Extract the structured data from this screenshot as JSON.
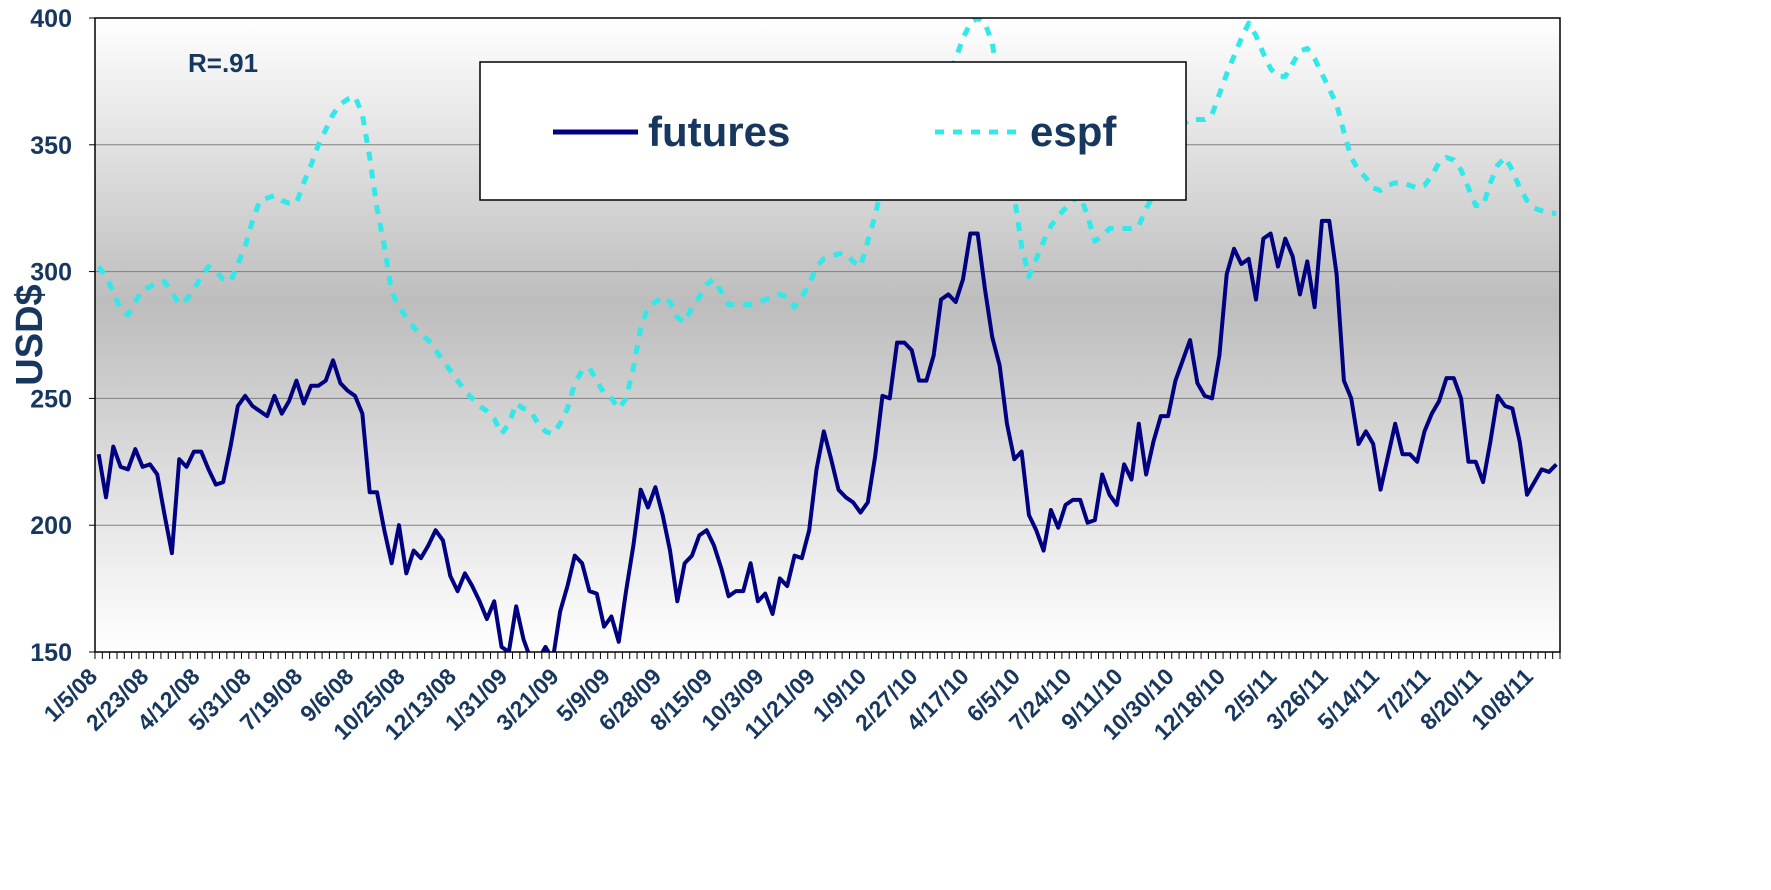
{
  "chart_data": {
    "type": "line",
    "annotations": [
      "R=.91"
    ],
    "y_label": "USD$",
    "categories": [
      "1/5/08",
      null,
      null,
      null,
      null,
      null,
      null,
      "2/23/08",
      null,
      null,
      null,
      null,
      null,
      null,
      "4/12/08",
      null,
      null,
      null,
      null,
      null,
      null,
      "5/31/08",
      null,
      null,
      null,
      null,
      null,
      null,
      "7/19/08",
      null,
      null,
      null,
      null,
      null,
      null,
      "9/6/08",
      null,
      null,
      null,
      null,
      null,
      null,
      "10/25/08",
      null,
      null,
      null,
      null,
      null,
      null,
      "12/13/08",
      null,
      null,
      null,
      null,
      null,
      null,
      "1/31/09",
      null,
      null,
      null,
      null,
      null,
      null,
      "3/21/09",
      null,
      null,
      null,
      null,
      null,
      null,
      "5/9/09",
      null,
      null,
      null,
      null,
      null,
      null,
      "6/28/09",
      null,
      null,
      null,
      null,
      null,
      null,
      "8/15/09",
      null,
      null,
      null,
      null,
      null,
      null,
      "10/3/09",
      null,
      null,
      null,
      null,
      null,
      null,
      "11/21/09",
      null,
      null,
      null,
      null,
      null,
      null,
      "1/9/10",
      null,
      null,
      null,
      null,
      null,
      null,
      "2/27/10",
      null,
      null,
      null,
      null,
      null,
      null,
      "4/17/10",
      null,
      null,
      null,
      null,
      null,
      null,
      "6/5/10",
      null,
      null,
      null,
      null,
      null,
      null,
      "7/24/10",
      null,
      null,
      null,
      null,
      null,
      null,
      "9/11/10",
      null,
      null,
      null,
      null,
      null,
      null,
      "10/30/10",
      null,
      null,
      null,
      null,
      null,
      null,
      "12/18/10",
      null,
      null,
      null,
      null,
      null,
      null,
      "2/5/11",
      null,
      null,
      null,
      null,
      null,
      null,
      "3/26/11",
      null,
      null,
      null,
      null,
      null,
      null,
      "5/14/11",
      null,
      null,
      null,
      null,
      null,
      null,
      "7/2/11",
      null,
      null,
      null,
      null,
      null,
      null,
      "8/20/11",
      null,
      null,
      null,
      null,
      null,
      null,
      "10/8/11",
      null,
      null,
      null
    ],
    "series": [
      {
        "name": "futures",
        "color": "#000080",
        "dash": false,
        "values": [
          228,
          211,
          231,
          223,
          222,
          230,
          223,
          224,
          220,
          204,
          189,
          226,
          223,
          229,
          229,
          222,
          216,
          217,
          231,
          247,
          251,
          247,
          245,
          243,
          251,
          244,
          249,
          257,
          248,
          255,
          255,
          257,
          265,
          256,
          253,
          251,
          244,
          213,
          213,
          198,
          185,
          200,
          181,
          190,
          187,
          192,
          198,
          194,
          180,
          174,
          181,
          176,
          170,
          163,
          170,
          152,
          150,
          168,
          155,
          147,
          147,
          152,
          147,
          166,
          176,
          188,
          185,
          174,
          173,
          160,
          164,
          154,
          174,
          192,
          214,
          207,
          215,
          204,
          190,
          170,
          185,
          188,
          196,
          198,
          192,
          183,
          172,
          174,
          174,
          185,
          170,
          173,
          165,
          179,
          176,
          188,
          187,
          198,
          222,
          237,
          226,
          214,
          211,
          209,
          205,
          209,
          227,
          251,
          250,
          272,
          272,
          269,
          257,
          257,
          267,
          289,
          291,
          288,
          297,
          315,
          315,
          293,
          274,
          263,
          240,
          226,
          229,
          204,
          198,
          190,
          206,
          199,
          208,
          210,
          210,
          201,
          202,
          220,
          212,
          208,
          224,
          218,
          240,
          220,
          233,
          243,
          243,
          257,
          265,
          273,
          256,
          251,
          250,
          267,
          299,
          309,
          303,
          305,
          289,
          313,
          315,
          302,
          313,
          306,
          291,
          304,
          286,
          320,
          320,
          299,
          257,
          250,
          232,
          237,
          232,
          214,
          227,
          240,
          228,
          228,
          225,
          237,
          244,
          249,
          258,
          258,
          250,
          225,
          225,
          217,
          233,
          251,
          247,
          246,
          233,
          212,
          217,
          222,
          221,
          224
        ]
      },
      {
        "name": "espf",
        "color": "#33e8e8",
        "dash": true,
        "values": [
          302,
          298,
          292,
          285,
          283,
          288,
          293,
          294,
          296,
          296,
          292,
          287,
          289,
          293,
          298,
          302,
          300,
          297,
          296,
          303,
          310,
          320,
          328,
          329,
          330,
          328,
          327,
          327,
          335,
          342,
          350,
          356,
          362,
          366,
          368,
          369,
          362,
          345,
          325,
          310,
          292,
          286,
          282,
          278,
          275,
          273,
          269,
          265,
          261,
          257,
          253,
          250,
          247,
          245,
          242,
          236,
          240,
          248,
          246,
          245,
          240,
          237,
          236,
          240,
          246,
          256,
          261,
          262,
          257,
          252,
          250,
          246,
          250,
          262,
          278,
          286,
          288,
          290,
          288,
          282,
          280,
          286,
          290,
          295,
          297,
          292,
          287,
          287,
          287,
          287,
          288,
          289,
          290,
          291,
          290,
          286,
          290,
          295,
          302,
          305,
          306,
          307,
          307,
          304,
          302,
          312,
          322,
          335,
          340,
          345,
          350,
          355,
          358,
          362,
          366,
          370,
          376,
          384,
          392,
          398,
          400,
          398,
          390,
          372,
          350,
          330,
          310,
          298,
          305,
          312,
          318,
          322,
          325,
          328,
          330,
          322,
          312,
          314,
          317,
          317,
          317,
          317,
          318,
          325,
          330,
          340,
          350,
          356,
          358,
          360,
          360,
          360,
          362,
          370,
          378,
          385,
          392,
          398,
          393,
          386,
          380,
          377,
          377,
          382,
          387,
          388,
          384,
          378,
          372,
          366,
          355,
          345,
          340,
          337,
          333,
          332,
          334,
          335,
          335,
          334,
          333,
          334,
          338,
          343,
          345,
          344,
          340,
          333,
          326,
          326,
          335,
          342,
          345,
          340,
          333,
          328,
          325,
          324,
          323,
          323
        ]
      }
    ],
    "ylim": [
      150,
      400
    ],
    "yticks": [
      150,
      200,
      250,
      300,
      350,
      400
    ],
    "grid": true,
    "legend": "top"
  }
}
